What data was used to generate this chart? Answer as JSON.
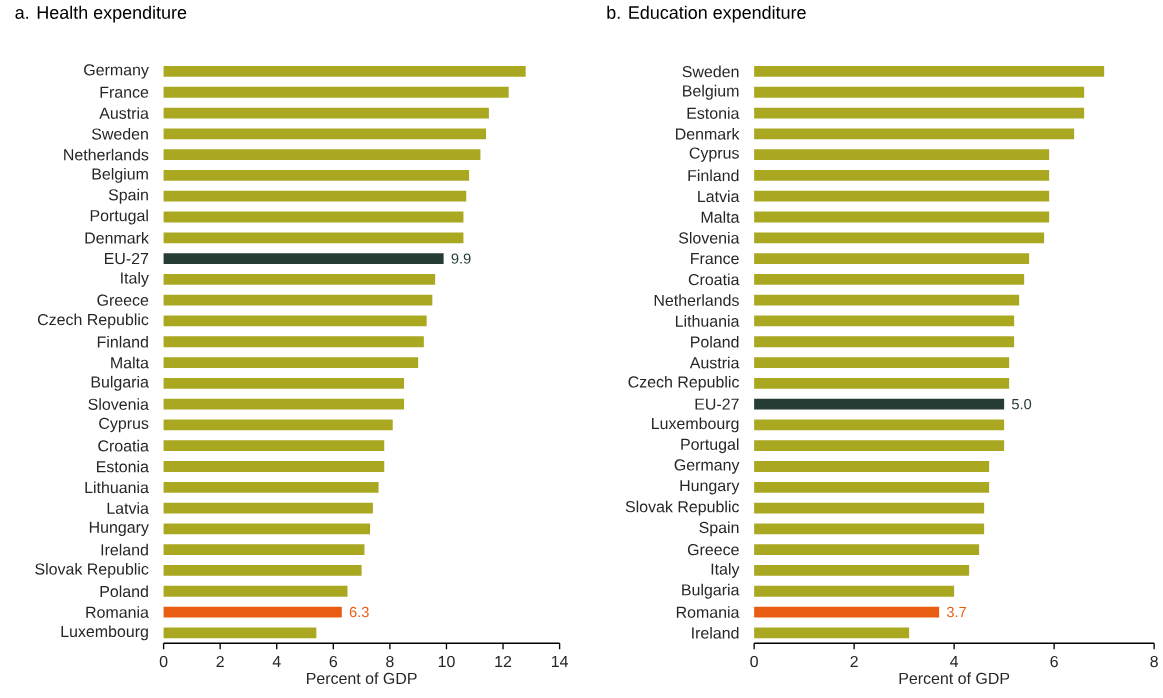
{
  "chart_data": [
    {
      "type": "bar",
      "orientation": "horizontal",
      "title": "a. Health expenditure",
      "xlabel": "Percent of GDP",
      "categories": [
        "Germany",
        "France",
        "Austria",
        "Sweden",
        "Netherlands",
        "Belgium",
        "Spain",
        "Portugal",
        "Denmark",
        "EU-27",
        "Italy",
        "Greece",
        "Czech Republic",
        "Finland",
        "Malta",
        "Bulgaria",
        "Slovenia",
        "Cyprus",
        "Croatia",
        "Estonia",
        "Lithuania",
        "Latvia",
        "Hungary",
        "Ireland",
        "Slovak Republic",
        "Poland",
        "Romania",
        "Luxembourg"
      ],
      "values": [
        12.8,
        12.2,
        11.5,
        11.4,
        11.2,
        10.8,
        10.7,
        10.6,
        10.6,
        9.9,
        9.6,
        9.5,
        9.3,
        9.2,
        9.0,
        8.5,
        8.5,
        8.1,
        7.8,
        7.8,
        7.6,
        7.4,
        7.3,
        7.1,
        7.0,
        6.5,
        6.3,
        5.4
      ],
      "colors": [
        "#a9a820",
        "#a9a820",
        "#a9a820",
        "#a9a820",
        "#a9a820",
        "#a9a820",
        "#a9a820",
        "#a9a820",
        "#a9a820",
        "#263d36",
        "#a9a820",
        "#a9a820",
        "#a9a820",
        "#a9a820",
        "#a9a820",
        "#a9a820",
        "#a9a820",
        "#a9a820",
        "#a9a820",
        "#a9a820",
        "#a9a820",
        "#a9a820",
        "#a9a820",
        "#a9a820",
        "#a9a820",
        "#a9a820",
        "#e85d12",
        "#a9a820"
      ],
      "value_labels": [
        null,
        null,
        null,
        null,
        null,
        null,
        null,
        null,
        null,
        "9.9",
        null,
        null,
        null,
        null,
        null,
        null,
        null,
        null,
        null,
        null,
        null,
        null,
        null,
        null,
        null,
        null,
        "6.3",
        null
      ],
      "xlim": [
        0,
        14
      ],
      "xticks": [
        0,
        2,
        4,
        6,
        8,
        10,
        12,
        14
      ]
    },
    {
      "type": "bar",
      "orientation": "horizontal",
      "title": "b. Education expenditure",
      "xlabel": "Percent of GDP",
      "categories": [
        "Sweden",
        "Belgium",
        "Estonia",
        "Denmark",
        "Cyprus",
        "Finland",
        "Latvia",
        "Malta",
        "Slovenia",
        "France",
        "Croatia",
        "Netherlands",
        "Lithuania",
        "Poland",
        "Austria",
        "Czech Republic",
        "EU-27",
        "Luxembourg",
        "Portugal",
        "Germany",
        "Hungary",
        "Slovak Republic",
        "Spain",
        "Greece",
        "Italy",
        "Bulgaria",
        "Romania",
        "Ireland"
      ],
      "values": [
        7.0,
        6.6,
        6.6,
        6.4,
        5.9,
        5.9,
        5.9,
        5.9,
        5.8,
        5.5,
        5.4,
        5.3,
        5.2,
        5.2,
        5.1,
        5.1,
        5.0,
        5.0,
        5.0,
        4.7,
        4.7,
        4.6,
        4.6,
        4.5,
        4.3,
        4.0,
        3.7,
        3.1
      ],
      "colors": [
        "#a9a820",
        "#a9a820",
        "#a9a820",
        "#a9a820",
        "#a9a820",
        "#a9a820",
        "#a9a820",
        "#a9a820",
        "#a9a820",
        "#a9a820",
        "#a9a820",
        "#a9a820",
        "#a9a820",
        "#a9a820",
        "#a9a820",
        "#a9a820",
        "#263d36",
        "#a9a820",
        "#a9a820",
        "#a9a820",
        "#a9a820",
        "#a9a820",
        "#a9a820",
        "#a9a820",
        "#a9a820",
        "#a9a820",
        "#e85d12",
        "#a9a820"
      ],
      "value_labels": [
        null,
        null,
        null,
        null,
        null,
        null,
        null,
        null,
        null,
        null,
        null,
        null,
        null,
        null,
        null,
        null,
        "5.0",
        null,
        null,
        null,
        null,
        null,
        null,
        null,
        null,
        null,
        "3.7",
        null
      ],
      "xlim": [
        0,
        8
      ],
      "xticks": [
        0,
        2,
        4,
        6,
        8
      ]
    }
  ]
}
